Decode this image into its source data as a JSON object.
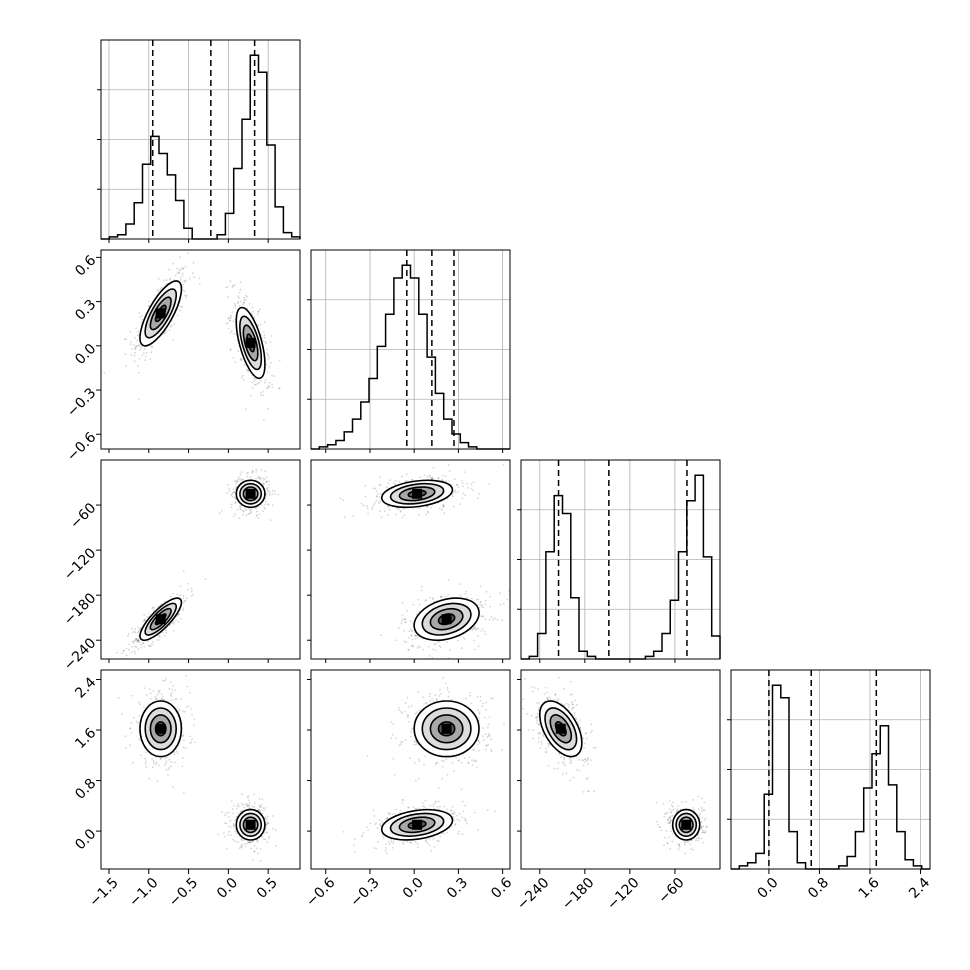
{
  "chart_data": {
    "type": "corner",
    "parameters": [
      {
        "range": [
          -1.6,
          0.9
        ],
        "ticks": [
          -1.5,
          -1.0,
          -0.5,
          0.0,
          0.5
        ],
        "tick_labels": [
          "−1.5",
          "−1.0",
          "−0.5",
          "0.0",
          "0.5"
        ],
        "quantiles": [
          -0.95,
          -0.22,
          0.33
        ]
      },
      {
        "range": [
          -0.7,
          0.65
        ],
        "ticks": [
          -0.6,
          -0.3,
          0.0,
          0.3,
          0.6
        ],
        "tick_labels": [
          "−0.6",
          "−0.3",
          "0.0",
          "0.3",
          "0.6"
        ],
        "quantiles": [
          -0.05,
          0.12,
          0.27
        ]
      },
      {
        "range": [
          -265,
          0
        ],
        "ticks": [
          -240,
          -180,
          -120,
          -60
        ],
        "tick_labels": [
          "−240",
          "−180",
          "−120",
          "−60"
        ],
        "quantiles": [
          -215,
          -148,
          -44
        ]
      },
      {
        "range": [
          -0.6,
          2.55
        ],
        "ticks": [
          0.0,
          0.8,
          1.6,
          2.4
        ],
        "tick_labels": [
          "0.0",
          "0.8",
          "1.6",
          "2.4"
        ],
        "quantiles": [
          0.0,
          0.67,
          1.7
        ]
      }
    ],
    "histograms": [
      {
        "param": 0,
        "edges_range": [
          -1.6,
          0.9
        ],
        "bins": 24,
        "counts": [
          0,
          1,
          2,
          7,
          17,
          35,
          48,
          40,
          30,
          18,
          5,
          0,
          0,
          0,
          2,
          12,
          33,
          56,
          86,
          78,
          44,
          15,
          3,
          1
        ]
      },
      {
        "param": 1,
        "edges_range": [
          -0.7,
          0.65
        ],
        "bins": 24,
        "counts": [
          0,
          1,
          2,
          4,
          8,
          14,
          22,
          33,
          48,
          63,
          80,
          86,
          80,
          63,
          43,
          26,
          14,
          7,
          3,
          1,
          0,
          0,
          0,
          0
        ]
      },
      {
        "param": 2,
        "edges_range": [
          -265,
          0
        ],
        "bins": 24,
        "counts": [
          0,
          1,
          10,
          42,
          64,
          57,
          24,
          3,
          1,
          0,
          0,
          0,
          0,
          0,
          0,
          1,
          3,
          10,
          23,
          42,
          62,
          72,
          40,
          9
        ]
      },
      {
        "param": 3,
        "edges_range": [
          -0.6,
          2.55
        ],
        "bins": 24,
        "counts": [
          0,
          1,
          2,
          5,
          24,
          59,
          55,
          12,
          2,
          0,
          0,
          0,
          0,
          1,
          4,
          12,
          26,
          37,
          46,
          27,
          12,
          3,
          1,
          0
        ]
      }
    ],
    "modes": [
      {
        "weight": 0.5,
        "mean": [
          -0.85,
          0.22,
          -212,
          1.62
        ],
        "std": [
          0.13,
          0.11,
          14,
          0.22
        ]
      },
      {
        "weight": 0.5,
        "mean": [
          0.28,
          0.02,
          -45,
          0.1
        ],
        "std": [
          0.09,
          0.12,
          9,
          0.12
        ]
      }
    ],
    "correlations": [
      {
        "mode": 0,
        "pairs": [
          [
            0,
            1,
            0.75
          ],
          [
            0,
            2,
            0.8
          ],
          [
            2,
            3,
            -0.5
          ],
          [
            1,
            2,
            0.3
          ],
          [
            1,
            3,
            0.0
          ],
          [
            0,
            3,
            0.0
          ]
        ]
      },
      {
        "mode": 1,
        "pairs": [
          [
            0,
            1,
            -0.6
          ],
          [
            1,
            2,
            0.3
          ],
          [
            1,
            3,
            0.3
          ],
          [
            0,
            2,
            0.0
          ],
          [
            0,
            3,
            0.0
          ],
          [
            2,
            3,
            0.0
          ]
        ]
      }
    ],
    "grid": true,
    "contours": true
  }
}
